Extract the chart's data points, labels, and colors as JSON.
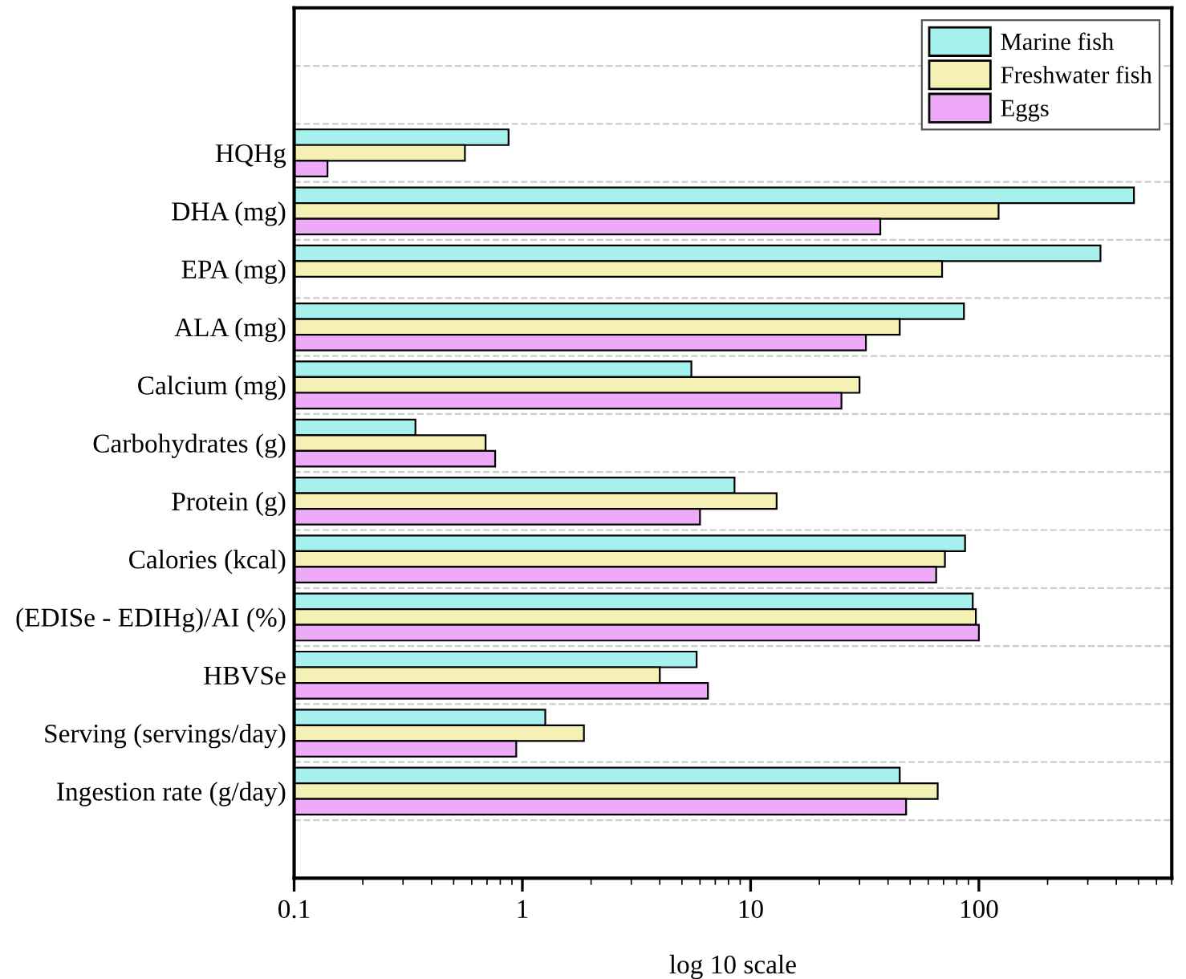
{
  "chart_data": {
    "type": "bar",
    "orientation": "horizontal",
    "log": "x",
    "xlabel": "log 10 scale",
    "categories": [
      "HQHg",
      "DHA (mg)",
      "EPA (mg)",
      "ALA (mg)",
      "Calcium (mg)",
      "Carbohydrates (g)",
      "Protein (g)",
      "Calories (kcal)",
      "(EDISe - EDIHg)/AI (%)",
      "HBVSe",
      "Serving (servings/day)",
      "Ingestion rate (g/day)"
    ],
    "series": [
      {
        "name": "Marine fish",
        "color": "#a6f0ee",
        "values": [
          0.87,
          478,
          341,
          86,
          5.5,
          0.34,
          8.5,
          87,
          94,
          5.8,
          1.26,
          45
        ]
      },
      {
        "name": "Freshwater fish",
        "color": "#f5f0b4",
        "values": [
          0.56,
          122,
          69,
          45,
          30,
          0.69,
          13,
          71,
          97,
          4.0,
          1.86,
          66
        ]
      },
      {
        "name": "Eggs",
        "color": "#eeaaf8",
        "values": [
          0.14,
          37,
          null,
          32,
          25,
          0.76,
          6.0,
          65,
          100,
          6.5,
          0.94,
          48
        ]
      }
    ],
    "xlim": [
      0.1,
      700
    ],
    "xticks": [
      0.1,
      1,
      10,
      100
    ],
    "grid": "y",
    "legend": "top right"
  }
}
